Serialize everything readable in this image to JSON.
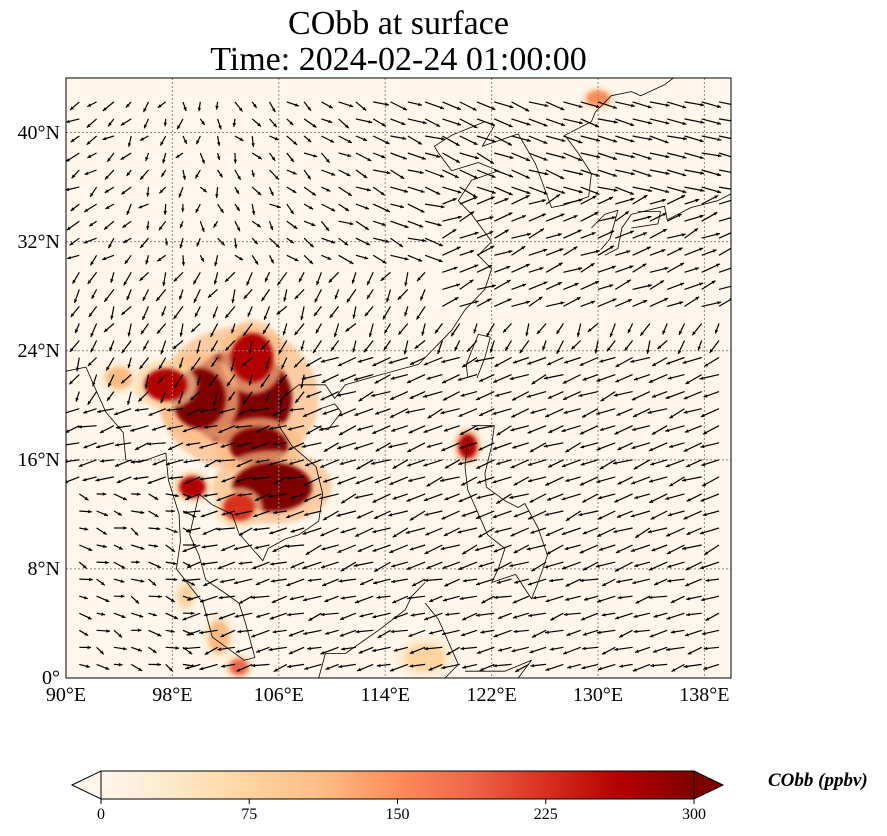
{
  "figure": {
    "title_line1": "CObb at surface",
    "title_line2": "Time: 2024-02-24 01:00:00"
  },
  "map": {
    "projection": "PlateCarree",
    "lon_range": [
      90,
      140
    ],
    "lat_range": [
      0,
      44
    ],
    "gridlines": "dotted",
    "lat_ticks": [
      {
        "value": 0,
        "label": "0°"
      },
      {
        "value": 8,
        "label": "8°N"
      },
      {
        "value": 16,
        "label": "16°N"
      },
      {
        "value": 24,
        "label": "24°N"
      },
      {
        "value": 32,
        "label": "32°N"
      },
      {
        "value": 40,
        "label": "40°N"
      }
    ],
    "lon_ticks": [
      {
        "value": 90,
        "label": "90°E"
      },
      {
        "value": 98,
        "label": "98°E"
      },
      {
        "value": 106,
        "label": "106°E"
      },
      {
        "value": 114,
        "label": "114°E"
      },
      {
        "value": 122,
        "label": "122°E"
      },
      {
        "value": 130,
        "label": "130°E"
      },
      {
        "value": 138,
        "label": "138°E"
      }
    ],
    "hotspots": [
      {
        "lon": 103.0,
        "lat": 20.5,
        "rx": 4.0,
        "ry": 3.5,
        "value": 300
      },
      {
        "lon": 100.0,
        "lat": 20.5,
        "rx": 2.0,
        "ry": 2.2,
        "value": 300
      },
      {
        "lon": 104.0,
        "lat": 23.5,
        "rx": 1.6,
        "ry": 1.8,
        "value": 280
      },
      {
        "lon": 97.5,
        "lat": 21.5,
        "rx": 1.6,
        "ry": 1.2,
        "value": 260
      },
      {
        "lon": 104.5,
        "lat": 17.0,
        "rx": 2.2,
        "ry": 1.4,
        "value": 290
      },
      {
        "lon": 105.5,
        "lat": 14.0,
        "rx": 3.0,
        "ry": 1.8,
        "value": 300
      },
      {
        "lon": 99.5,
        "lat": 14.0,
        "rx": 1.0,
        "ry": 0.8,
        "value": 250
      },
      {
        "lon": 103.0,
        "lat": 12.5,
        "rx": 1.2,
        "ry": 1.0,
        "value": 230
      },
      {
        "lon": 120.2,
        "lat": 17.0,
        "rx": 0.7,
        "ry": 0.9,
        "value": 280
      },
      {
        "lon": 130.0,
        "lat": 42.5,
        "rx": 0.9,
        "ry": 0.6,
        "value": 160
      },
      {
        "lon": 94.0,
        "lat": 22.0,
        "rx": 1.0,
        "ry": 0.8,
        "value": 110
      },
      {
        "lon": 101.5,
        "lat": 3.0,
        "rx": 0.8,
        "ry": 1.2,
        "value": 120
      },
      {
        "lon": 117.0,
        "lat": 1.5,
        "rx": 1.5,
        "ry": 1.0,
        "value": 70
      },
      {
        "lon": 99.0,
        "lat": 6.0,
        "rx": 0.6,
        "ry": 0.8,
        "value": 90
      },
      {
        "lon": 103.0,
        "lat": 0.8,
        "rx": 0.7,
        "ry": 0.6,
        "value": 200
      }
    ]
  },
  "colorbar": {
    "label": "CObb (ppbv)",
    "min": 0,
    "max": 300,
    "extend": "both",
    "colormap": "OrRd",
    "colors": [
      "#fff7ec",
      "#fee8c8",
      "#fdd49e",
      "#fdbb84",
      "#fc8d59",
      "#ef6548",
      "#d7301f",
      "#b30000",
      "#7f0000"
    ],
    "ticks": [
      {
        "value": 0,
        "label": "0"
      },
      {
        "value": 75,
        "label": "75"
      },
      {
        "value": 150,
        "label": "150"
      },
      {
        "value": 225,
        "label": "225"
      },
      {
        "value": 300,
        "label": "300"
      }
    ]
  }
}
